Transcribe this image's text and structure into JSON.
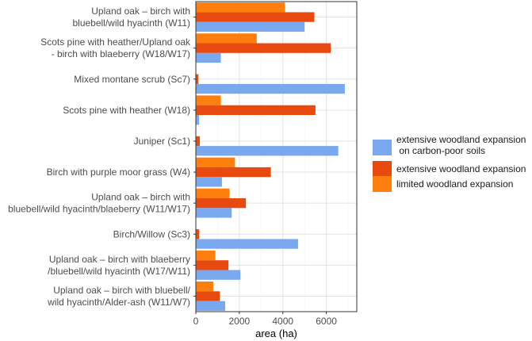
{
  "chart_data": {
    "type": "bar",
    "orientation": "horizontal",
    "title": "",
    "xlabel": "area (ha)",
    "ylabel": "",
    "xlim": [
      0,
      7400
    ],
    "xticks": [
      0,
      2000,
      4000,
      6000
    ],
    "xtick_labels": [
      "0",
      "2000",
      "4000",
      "6000"
    ],
    "grid": true,
    "legend_position": "right",
    "categories": [
      [
        "Upland oak – birch with",
        "bluebell/wild hyacinth (W11)"
      ],
      [
        "Scots pine with heather/Upland oak",
        "- birch with blaeberry (W18/W17)"
      ],
      [
        "Mixed montane scrub (Sc7)"
      ],
      [
        "Scots pine with heather (W18)"
      ],
      [
        "Juniper (Sc1)"
      ],
      [
        "Birch with purple moor grass (W4)"
      ],
      [
        "Upland oak – birch with",
        "bluebell/wild hyacinth/blaeberry (W11/W17)"
      ],
      [
        "Birch/Willow (Sc3)"
      ],
      [
        "Upland oak – birch with blaeberry",
        "/bluebell/wild hyacinth (W17/W11)"
      ],
      [
        "Upland oak – birch with bluebell/",
        "wild hyacinth/Alder-ash (W11/W7)"
      ]
    ],
    "series": [
      {
        "name": "limited woodland expansion",
        "color": "#ff7f0e",
        "values": [
          4100,
          2800,
          0,
          1150,
          0,
          1800,
          1550,
          0,
          900,
          800
        ]
      },
      {
        "name": "extensive woodland expansion",
        "color": "#e8490f",
        "values": [
          5450,
          6200,
          120,
          5500,
          180,
          3450,
          2300,
          150,
          1500,
          1100
        ]
      },
      {
        "name": "extensive woodland expansion on carbon-poor soils",
        "color": "#7aa8ef",
        "values": [
          5000,
          1150,
          6850,
          150,
          6550,
          1200,
          1650,
          4700,
          2050,
          1350
        ]
      }
    ],
    "legend": [
      {
        "series": 2,
        "lines": [
          "extensive woodland expansion",
          " on carbon-poor soils"
        ]
      },
      {
        "series": 1,
        "lines": [
          "extensive woodland expansion"
        ]
      },
      {
        "series": 0,
        "lines": [
          "limited woodland expansion"
        ]
      }
    ]
  }
}
